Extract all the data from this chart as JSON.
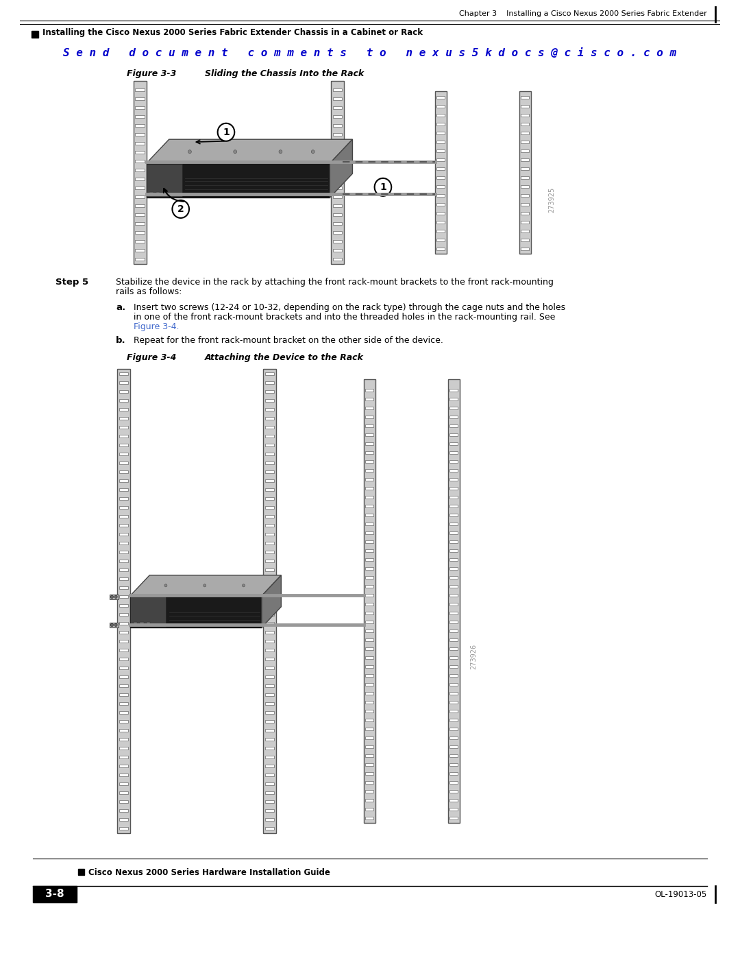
{
  "page_bg": "#ffffff",
  "top_rule_color": "#000000",
  "header_chapter_text": "Chapter 3    Installing a Cisco Nexus 2000 Series Fabric Extender",
  "header_rule_color": "#000000",
  "header_sub_text": "Installing the Cisco Nexus 2000 Series Fabric Extender Chassis in a Cabinet or Rack",
  "send_doc_text": "S e n d   d o c u m e n t   c o m m e n t s   t o   n e x u s 5 k d o c s @ c i s c o . c o m",
  "send_doc_color": "#0000cc",
  "fig3_label": "Figure 3-3",
  "fig3_title": "Sliding the Chassis Into the Rack",
  "fig4_label": "Figure 3-4",
  "fig4_title": "Attaching the Device to the Rack",
  "step5_bold": "Step 5",
  "step5_text": "Stabilize the device in the rack by attaching the front rack-mount brackets to the front rack-mounting\nrails as follows:",
  "step_a_bold": "a.",
  "step_a_line1": "Insert two screws (12-24 or 10-32, depending on the rack type) through the cage nuts and the holes",
  "step_a_line2": "in one of the front rack-mount brackets and into the threaded holes in the rack-mounting rail. See",
  "step_a_link": "Figure 3-4.",
  "step_b_bold": "b.",
  "step_b_text": "Repeat for the front rack-mount bracket on the other side of the device.",
  "footer_guide_text": "Cisco Nexus 2000 Series Hardware Installation Guide",
  "footer_page_box": "3-8",
  "footer_right_text": "OL-19013-05",
  "fig3_watermark": "273925",
  "fig4_watermark": "273926",
  "body_font_color": "#000000",
  "link_color": "#4169cc"
}
